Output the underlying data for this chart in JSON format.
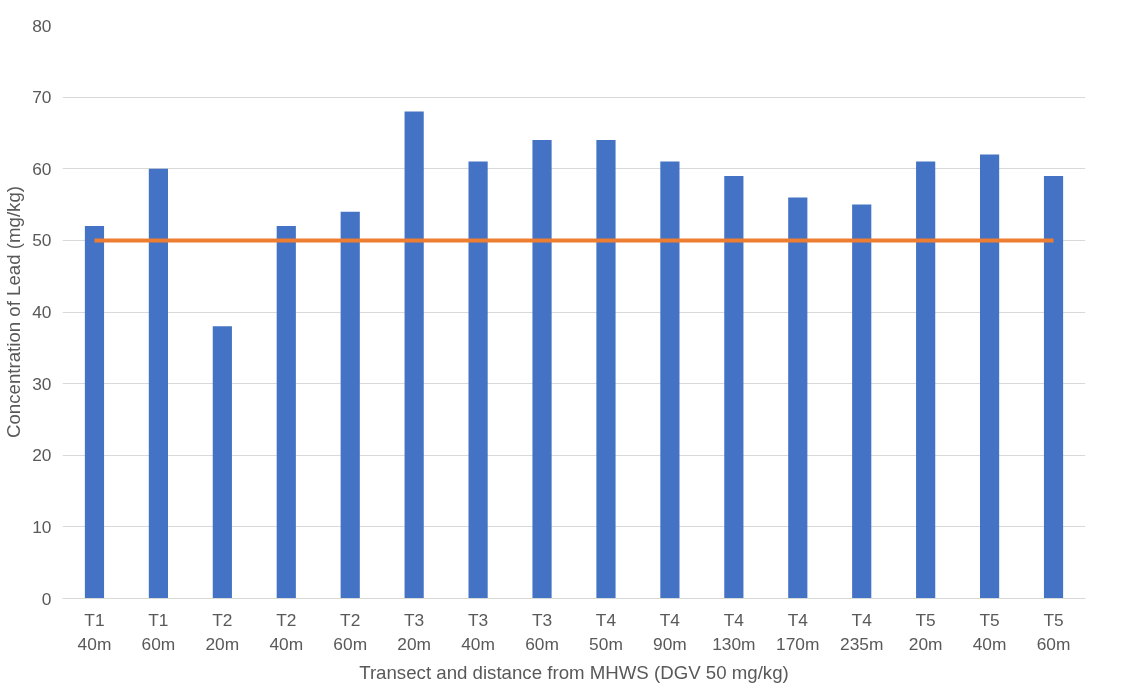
{
  "chart_data": {
    "type": "bar",
    "xlabel": "Transect and distance from MHWS (DGV 50 mg/kg)",
    "ylabel": "Concentration of Lead (mg/kg)",
    "categories": [
      "T1\n40m",
      "T1\n60m",
      "T2\n20m",
      "T2\n40m",
      "T2\n60m",
      "T3\n20m",
      "T3\n40m",
      "T3\n60m",
      "T4\n50m",
      "T4\n90m",
      "T4\n130m",
      "T4\n170m",
      "T4\n235m",
      "T5\n20m",
      "T5\n40m",
      "T5\n60m"
    ],
    "series": [
      {
        "color": "#4472c4",
        "values": [
          52,
          60,
          38,
          52,
          54,
          68,
          61,
          64,
          64,
          61,
          59,
          56,
          55,
          61,
          62,
          59
        ]
      },
      {
        "type": "line",
        "color": "#ed7d31",
        "values": [
          50,
          50,
          50,
          50,
          50,
          50,
          50,
          50,
          50,
          50,
          50,
          50,
          50,
          50,
          50,
          50
        ]
      }
    ],
    "ylim": [
      0,
      80
    ],
    "yticks": [
      0,
      10,
      20,
      30,
      40,
      50,
      60,
      70,
      80
    ],
    "grid": "y"
  }
}
